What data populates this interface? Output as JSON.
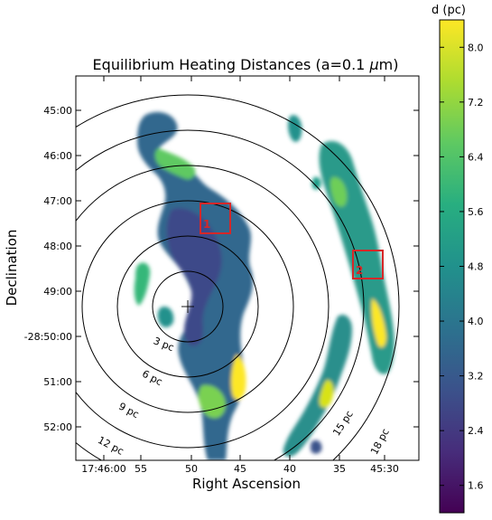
{
  "chart_data": {
    "type": "heatmap",
    "title": "Equilibrium Heating Distances (a=0.1 ",
    "title_mu": "μ",
    "title_tail": "m)",
    "xlabel": "Right Ascension",
    "ylabel": "Declination",
    "x_ticks": [
      "17:46:00",
      "55",
      "50",
      "45",
      "40",
      "35",
      "45:30"
    ],
    "y_ticks": [
      "45:00",
      "46:00",
      "47:00",
      "48:00",
      "49:00",
      "-28:50:00",
      "51:00",
      "52:00"
    ],
    "colorbar": {
      "label": "d (pc)",
      "min": 1.2,
      "max": 8.4,
      "ticks": [
        "1.6",
        "2.4",
        "3.2",
        "4.0",
        "4.8",
        "5.6",
        "6.4",
        "7.2",
        "8.0"
      ],
      "tick_values": [
        1.6,
        2.4,
        3.2,
        4.0,
        4.8,
        5.6,
        6.4,
        7.2,
        8.0
      ],
      "colormap": "viridis"
    },
    "distance_rings": [
      {
        "pc": 3,
        "label": "3 pc"
      },
      {
        "pc": 6,
        "label": "6 pc"
      },
      {
        "pc": 9,
        "label": "9 pc"
      },
      {
        "pc": 12,
        "label": "12 pc"
      },
      {
        "pc": 15,
        "label": "15 pc"
      },
      {
        "pc": 18,
        "label": "18 pc"
      }
    ],
    "boxes": [
      {
        "label": "1",
        "color": "#d62728"
      },
      {
        "label": "2",
        "color": "#d62728"
      }
    ],
    "center_marker": "+"
  }
}
